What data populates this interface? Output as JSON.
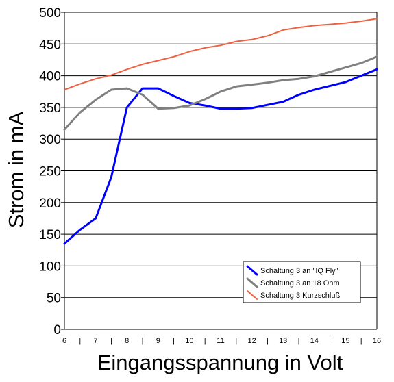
{
  "chart_data": {
    "type": "line",
    "xlabel": "Eingangsspannung in Volt",
    "ylabel": "Strom in mA",
    "ylim": [
      0,
      500
    ],
    "yticks": [
      "0",
      "50",
      "100",
      "150",
      "200",
      "250",
      "300",
      "350",
      "400",
      "450",
      "500"
    ],
    "xlim": [
      6,
      16
    ],
    "xticks": [
      "6",
      "7",
      "8",
      "9",
      "10",
      "11",
      "12",
      "13",
      "14",
      "15",
      "16"
    ],
    "grid": "horizontal",
    "legend_position": "bottom-right",
    "series": [
      {
        "name": "Schaltung 3 an \"IQ Fly\"",
        "color": "#0000ff",
        "x": [
          6,
          6.5,
          7,
          7.5,
          8,
          8.5,
          9,
          9.5,
          10,
          10.5,
          11,
          11.5,
          12,
          12.5,
          13,
          13.5,
          14,
          14.5,
          15,
          15.5,
          16
        ],
        "y": [
          135,
          157,
          175,
          240,
          350,
          380,
          380,
          368,
          357,
          353,
          348,
          348,
          349,
          354,
          359,
          370,
          378,
          384,
          390,
          400,
          410
        ]
      },
      {
        "name": "Schaltung 3 an 18 Ohm",
        "color": "#808080",
        "x": [
          6,
          6.5,
          7,
          7.5,
          8,
          8.5,
          9,
          9.5,
          10,
          10.5,
          11,
          11.5,
          12,
          12.5,
          13,
          13.5,
          14,
          14.5,
          15,
          15.5,
          16
        ],
        "y": [
          315,
          342,
          362,
          378,
          380,
          370,
          348,
          349,
          353,
          363,
          375,
          383,
          386,
          389,
          393,
          395,
          399,
          406,
          413,
          420,
          430
        ]
      },
      {
        "name": "Schaltung 3 Kurzschluß",
        "color": "#f06040",
        "x": [
          6,
          6.5,
          7,
          7.5,
          8,
          8.5,
          9,
          9.5,
          10,
          10.5,
          11,
          11.5,
          12,
          12.5,
          13,
          13.5,
          14,
          14.5,
          15,
          15.5,
          16
        ],
        "y": [
          378,
          387,
          395,
          401,
          410,
          418,
          424,
          430,
          438,
          444,
          448,
          454,
          457,
          463,
          472,
          476,
          479,
          481,
          483,
          486,
          490
        ]
      }
    ]
  }
}
